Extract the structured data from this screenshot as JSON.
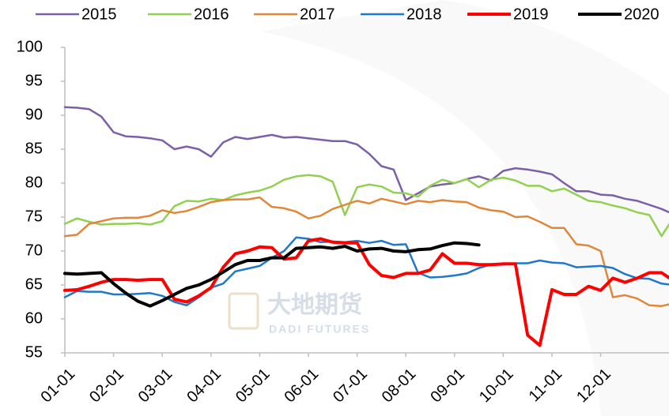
{
  "chart_data": {
    "type": "line",
    "watermark": {
      "title": "大地期货",
      "subtitle": "DADI FUTURES"
    },
    "categories": [
      "01-01",
      null,
      null,
      null,
      "02-01",
      null,
      null,
      null,
      "03-01",
      null,
      null,
      null,
      "04-01",
      null,
      null,
      null,
      "05-01",
      null,
      null,
      null,
      "06-01",
      null,
      null,
      null,
      "07-01",
      null,
      null,
      null,
      "08-01",
      null,
      null,
      null,
      "09-01",
      null,
      null,
      null,
      "10-01",
      null,
      null,
      null,
      "11-01",
      null,
      null,
      null,
      "12-01",
      null,
      null,
      null,
      null,
      null,
      null
    ],
    "ylim": [
      55,
      100
    ],
    "yticks": [
      55,
      60,
      65,
      70,
      75,
      80,
      85,
      90,
      95,
      100
    ],
    "grid": false,
    "legend": "top",
    "series": [
      {
        "name": "2015",
        "color": "#7b5fa7",
        "width": 2.5,
        "values": [
          91.2,
          91.1,
          90.9,
          89.8,
          87.5,
          86.9,
          86.8,
          86.6,
          86.3,
          85.0,
          85.4,
          85.0,
          83.9,
          86.0,
          86.8,
          86.5,
          86.8,
          87.1,
          86.7,
          86.8,
          86.6,
          86.4,
          86.2,
          86.2,
          85.7,
          84.3,
          82.5,
          82.0,
          77.5,
          78.5,
          79.5,
          79.8,
          80.0,
          80.6,
          81.0,
          80.4,
          81.8,
          82.2,
          82.0,
          81.7,
          81.3,
          80.0,
          78.8,
          78.8,
          78.3,
          78.2,
          77.7,
          77.4,
          76.8,
          76.2,
          75.4
        ]
      },
      {
        "name": "2016",
        "color": "#92d050",
        "width": 2.5,
        "values": [
          74.0,
          74.8,
          74.3,
          73.9,
          74.0,
          74.0,
          74.1,
          73.9,
          74.4,
          76.6,
          77.4,
          77.3,
          77.7,
          77.5,
          78.2,
          78.6,
          78.9,
          79.5,
          80.5,
          81.0,
          81.2,
          81.0,
          80.2,
          75.3,
          79.4,
          79.8,
          79.5,
          78.6,
          78.5,
          78.0,
          79.6,
          80.5,
          80.0,
          80.6,
          79.4,
          80.5,
          80.8,
          80.4,
          79.6,
          79.6,
          78.8,
          79.2,
          78.3,
          77.4,
          77.2,
          76.7,
          76.3,
          75.7,
          75.3,
          72.2,
          75.0
        ]
      },
      {
        "name": "2017",
        "color": "#e0873a",
        "width": 2.5,
        "values": [
          72.2,
          72.4,
          74.0,
          74.4,
          74.8,
          74.9,
          74.9,
          75.2,
          76.0,
          75.6,
          75.9,
          76.5,
          77.2,
          77.5,
          77.6,
          77.6,
          77.9,
          76.5,
          76.3,
          75.8,
          74.8,
          75.2,
          76.2,
          76.8,
          77.4,
          77.0,
          77.7,
          77.3,
          76.9,
          77.4,
          77.2,
          77.5,
          77.3,
          77.2,
          76.4,
          76.0,
          75.8,
          75.0,
          75.1,
          74.3,
          73.4,
          73.4,
          71.0,
          70.8,
          70.0,
          63.2,
          63.5,
          63.0,
          62.0,
          61.9,
          62.3
        ]
      },
      {
        "name": "2018",
        "color": "#1f78c8",
        "width": 2.5,
        "values": [
          63.2,
          64.1,
          64.0,
          64.0,
          63.6,
          63.6,
          63.7,
          63.8,
          63.4,
          62.5,
          62.0,
          63.2,
          64.6,
          65.2,
          67.0,
          67.4,
          67.8,
          69.0,
          70.0,
          72.0,
          71.8,
          71.3,
          71.4,
          71.3,
          71.5,
          71.2,
          71.5,
          70.9,
          71.0,
          66.8,
          66.1,
          66.2,
          66.4,
          66.7,
          67.5,
          68.0,
          68.0,
          68.2,
          68.2,
          68.6,
          68.3,
          68.2,
          67.6,
          67.7,
          67.8,
          67.5,
          66.6,
          66.0,
          65.9,
          65.2,
          65.0
        ]
      },
      {
        "name": "2019",
        "color": "#ff0000",
        "width": 4,
        "values": [
          64.2,
          64.3,
          64.8,
          65.4,
          65.8,
          65.8,
          65.7,
          65.8,
          65.8,
          62.9,
          62.5,
          63.4,
          64.6,
          67.6,
          69.6,
          70.0,
          70.6,
          70.5,
          68.8,
          69.0,
          71.5,
          71.8,
          71.3,
          71.2,
          71.2,
          68.0,
          66.4,
          66.1,
          66.7,
          66.7,
          67.2,
          69.6,
          68.2,
          68.2,
          68.0,
          68.0,
          68.1,
          68.1,
          57.6,
          56.1,
          64.3,
          63.6,
          63.6,
          64.8,
          64.2,
          66.0,
          65.4,
          66.0,
          66.8,
          66.8,
          65.6
        ]
      },
      {
        "name": "2020",
        "color": "#000000",
        "width": 4,
        "values": [
          66.7,
          66.6,
          66.7,
          66.8,
          65.2,
          63.8,
          62.6,
          61.9,
          62.7,
          63.6,
          64.5,
          65.0,
          65.8,
          66.9,
          68.0,
          68.6,
          68.6,
          69.0,
          69.0,
          70.4,
          70.5,
          70.6,
          70.4,
          70.7,
          70.0,
          70.3,
          70.4,
          70.0,
          69.9,
          70.2,
          70.3,
          70.8,
          71.2,
          71.1,
          70.9,
          null,
          null,
          null,
          null,
          null,
          null,
          null,
          null,
          null,
          null,
          null,
          null,
          null,
          null,
          null,
          null
        ]
      }
    ]
  }
}
